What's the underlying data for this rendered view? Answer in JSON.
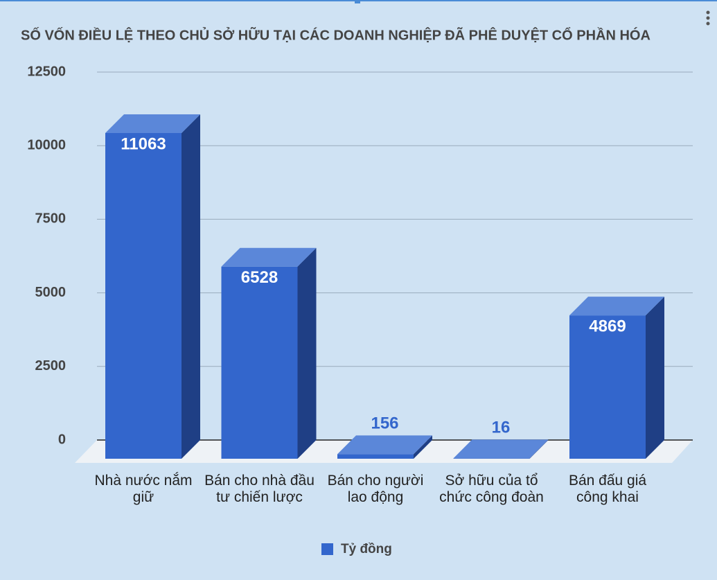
{
  "chart_data": {
    "type": "bar3d",
    "title": "SỐ VỐN ĐIỀU LỆ THEO CHỦ SỞ HỮU TẠI CÁC DOANH NGHIỆP ĐÃ PHÊ DUYỆT CỔ PHẦN HÓA",
    "categories": [
      "Nhà nước nắm giữ",
      "Bán cho nhà đầu tư chiến lược",
      "Bán cho người lao động",
      "Sở hữu của tổ chức công đoàn",
      "Bán đấu giá công khai"
    ],
    "series": [
      {
        "name": "Tỷ đồng",
        "color": "#3366cc",
        "values": [
          11063,
          6528,
          156,
          16,
          4869
        ]
      }
    ],
    "ylim": [
      0,
      12500
    ],
    "yticks": [
      0,
      2500,
      5000,
      7500,
      10000,
      12500
    ],
    "grid": true,
    "legend": "bottom"
  }
}
